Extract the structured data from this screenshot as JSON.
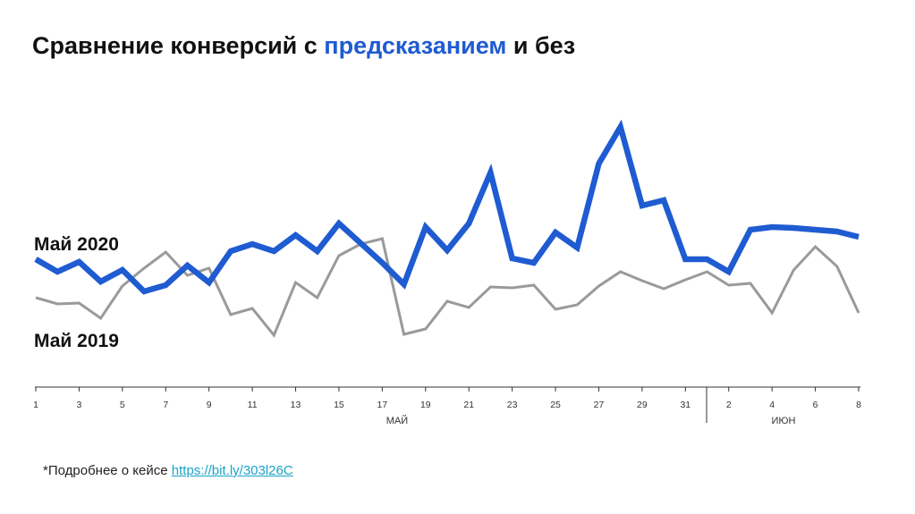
{
  "title": {
    "prefix": "Сравнение конверсий с ",
    "highlight": "предсказанием",
    "suffix": " и без"
  },
  "colors": {
    "highlight": "#1f5bd1",
    "series_2020": "#1f5bd1",
    "series_2019": "#9a9a9a",
    "link": "#1aa3c8"
  },
  "footnote": {
    "text": "*Подробнее о кейсе ",
    "link_text": "https://bit.ly/303l26C"
  },
  "chart_data": {
    "type": "line",
    "x": [
      "1",
      "2",
      "3",
      "4",
      "5",
      "6",
      "7",
      "8",
      "9",
      "10",
      "11",
      "12",
      "13",
      "14",
      "15",
      "16",
      "17",
      "18",
      "19",
      "20",
      "21",
      "22",
      "23",
      "24",
      "25",
      "26",
      "27",
      "28",
      "29",
      "30",
      "31",
      "1",
      "2",
      "3",
      "4",
      "5",
      "6",
      "7",
      "8"
    ],
    "tick_labels": [
      "1",
      "3",
      "5",
      "7",
      "9",
      "11",
      "13",
      "15",
      "17",
      "19",
      "21",
      "23",
      "25",
      "27",
      "29",
      "31",
      "2",
      "4",
      "6",
      "8"
    ],
    "month_labels": [
      "МАЙ",
      "ИЮН"
    ],
    "yaxis_shown": false,
    "grid": false,
    "series": [
      {
        "name": "Май 2020",
        "color": "#1f5bd1",
        "values": [
          290,
          304,
          293,
          315,
          302,
          326,
          319,
          297,
          316,
          281,
          273,
          281,
          263,
          281,
          250,
          272,
          294,
          318,
          254,
          280,
          250,
          193,
          289,
          294,
          260,
          277,
          183,
          142,
          230,
          224,
          290,
          290,
          304,
          257,
          254,
          255,
          257,
          259,
          265
        ]
      },
      {
        "name": "Май 2019",
        "color": "#9a9a9a",
        "values": [
          333,
          340,
          339,
          356,
          320,
          300,
          282,
          308,
          300,
          352,
          345,
          375,
          316,
          333,
          286,
          273,
          267,
          374,
          368,
          337,
          344,
          321,
          322,
          319,
          346,
          341,
          320,
          304,
          314,
          323,
          313,
          304,
          319,
          317,
          350,
          302,
          276,
          298,
          350
        ]
      }
    ]
  }
}
